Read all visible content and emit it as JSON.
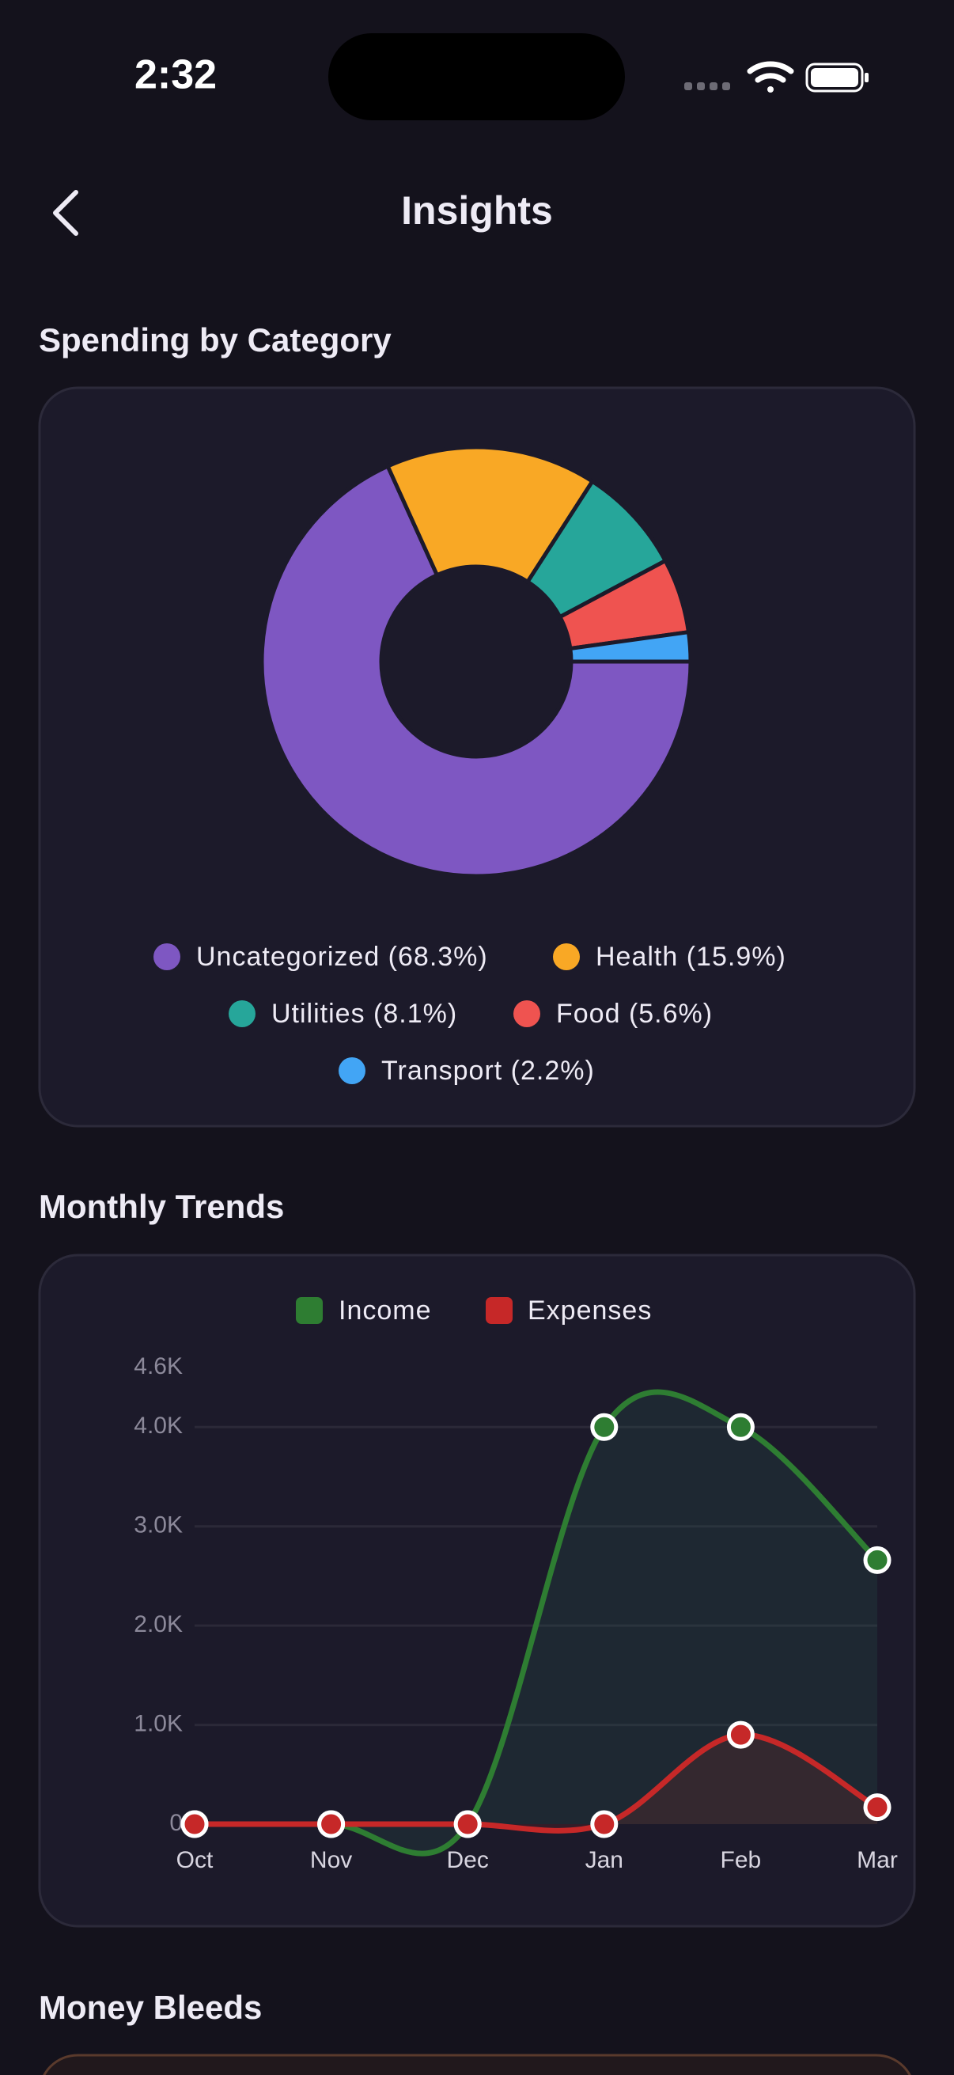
{
  "status_bar": {
    "time": "2:32"
  },
  "header": {
    "title": "Insights"
  },
  "sections": {
    "spending": "Spending by Category",
    "trends": "Monthly Trends",
    "bleeds": "Money Bleeds"
  },
  "chart_data": [
    {
      "type": "pie",
      "categories": [
        "Uncategorized (68.3%)",
        "Health (15.9%)",
        "Utilities (8.1%)",
        "Food (5.6%)",
        "Transport (2.2%)"
      ],
      "values": [
        68.3,
        15.9,
        8.1,
        5.6,
        2.2
      ],
      "colors": [
        "#7e57c2",
        "#f9a825",
        "#26a69a",
        "#ef5350",
        "#42a5f5"
      ]
    },
    {
      "type": "line",
      "categories": [
        "Oct",
        "Nov",
        "Dec",
        "Jan",
        "Feb",
        "Mar"
      ],
      "series": [
        {
          "name": "Income",
          "color": "#2e7d32",
          "values": [
            0,
            0,
            0,
            4000,
            4000,
            2660
          ]
        },
        {
          "name": "Expenses",
          "color": "#c62828",
          "values": [
            0,
            0,
            0,
            0,
            900,
            170
          ]
        }
      ],
      "ylim": [
        0,
        4600
      ],
      "yticks": [
        0,
        {
          "value": 1000,
          "label": "1.0K"
        },
        {
          "value": 2000,
          "label": "2.0K"
        },
        {
          "value": 3000,
          "label": "3.0K"
        },
        {
          "value": 4000,
          "label": "4.0K"
        },
        {
          "value": 4600,
          "label": "4.6K"
        }
      ],
      "grid": true
    }
  ]
}
